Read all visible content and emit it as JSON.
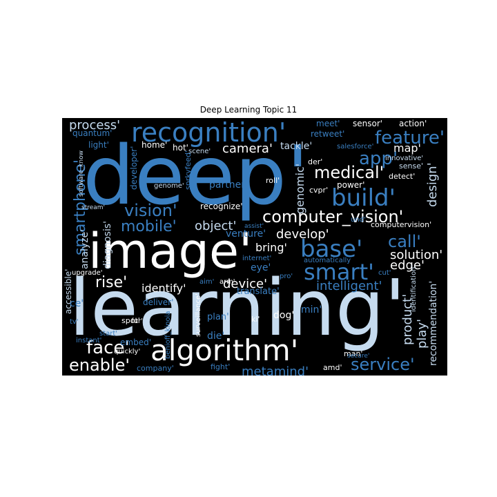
{
  "chart_title": "Deep Learning Topic 11",
  "chart_data": {
    "type": "wordcloud",
    "title": "Deep Learning Topic 11",
    "words": [
      "deep'",
      "learning'",
      "image'",
      "recognition'",
      "algorithm'",
      "build'",
      "base'",
      "smart'",
      "computer_vision'",
      "medical'",
      "feature'",
      "app'",
      "process'",
      "mobile'",
      "vision'",
      "face'",
      "enable'",
      "service'",
      "call'",
      "smartphone'",
      "solution'",
      "device'",
      "camera'",
      "rise'",
      "object'",
      "develop'",
      "intelligent'",
      "product'",
      "play'",
      "metamind'",
      "edge'",
      "design'",
      "recommendation'",
      "genomic'",
      "analyze'",
      "bring'",
      "identify'",
      "eye'",
      "map'",
      "tackle'",
      "home'",
      "hot'",
      "light'",
      "quantum'",
      "diagnosis'",
      "venture'",
      "recognize'",
      "partner'",
      "developer'",
      "sensor'",
      "action'",
      "meet'",
      "retweet'",
      "innovative'",
      "salesforce'",
      "sense'",
      "detect'",
      "power'",
      "cvpr'",
      "der'",
      "roll'",
      "genome'",
      "scene'",
      "sprkyfeed'",
      "software_know",
      "stream'",
      "assist'",
      "und'",
      "computervision'",
      "internet'",
      "automatically",
      "upgrade'",
      "accessible'",
      "fur'",
      "aim'",
      "arm'",
      "deliver'",
      "translate'",
      "pro'",
      "cut'",
      "identification'",
      "min'",
      "dog'",
      "ki'",
      "plan'",
      "spot'",
      "surveillance'",
      "die'",
      "start'",
      "ce'",
      "tv'",
      "instant'",
      "embed'",
      "quickly'",
      "benioff_kinoia",
      "company'",
      "fight'",
      "amd'",
      "man'",
      "secure'"
    ]
  }
}
